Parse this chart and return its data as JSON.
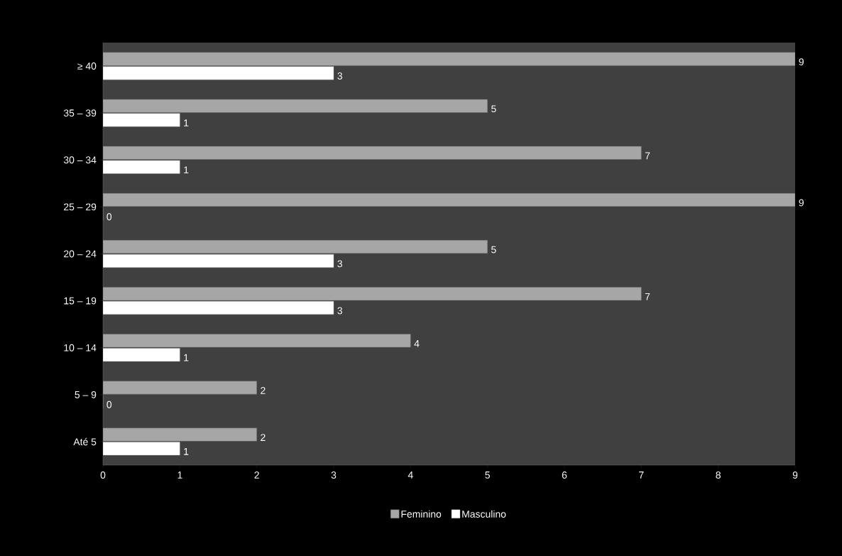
{
  "chart_data": {
    "type": "bar",
    "orientation": "horizontal",
    "categories": [
      "≥ 40",
      "35 – 39",
      "30 – 34",
      "25 – 29",
      "20 – 24",
      "15 – 19",
      "10 – 14",
      "5 – 9",
      "Até 5"
    ],
    "series": [
      {
        "name": "Feminino",
        "color": "#a6a6a6",
        "values": [
          9,
          5,
          7,
          9,
          5,
          7,
          4,
          2,
          2
        ]
      },
      {
        "name": "Masculino",
        "color": "#ffffff",
        "values": [
          3,
          1,
          1,
          0,
          3,
          3,
          1,
          0,
          1
        ]
      }
    ],
    "xlim": [
      0,
      9
    ],
    "xticks": [
      0,
      1,
      2,
      3,
      4,
      5,
      6,
      7,
      8,
      9
    ],
    "data_labels": true,
    "legend": "bottom",
    "grid": false
  }
}
